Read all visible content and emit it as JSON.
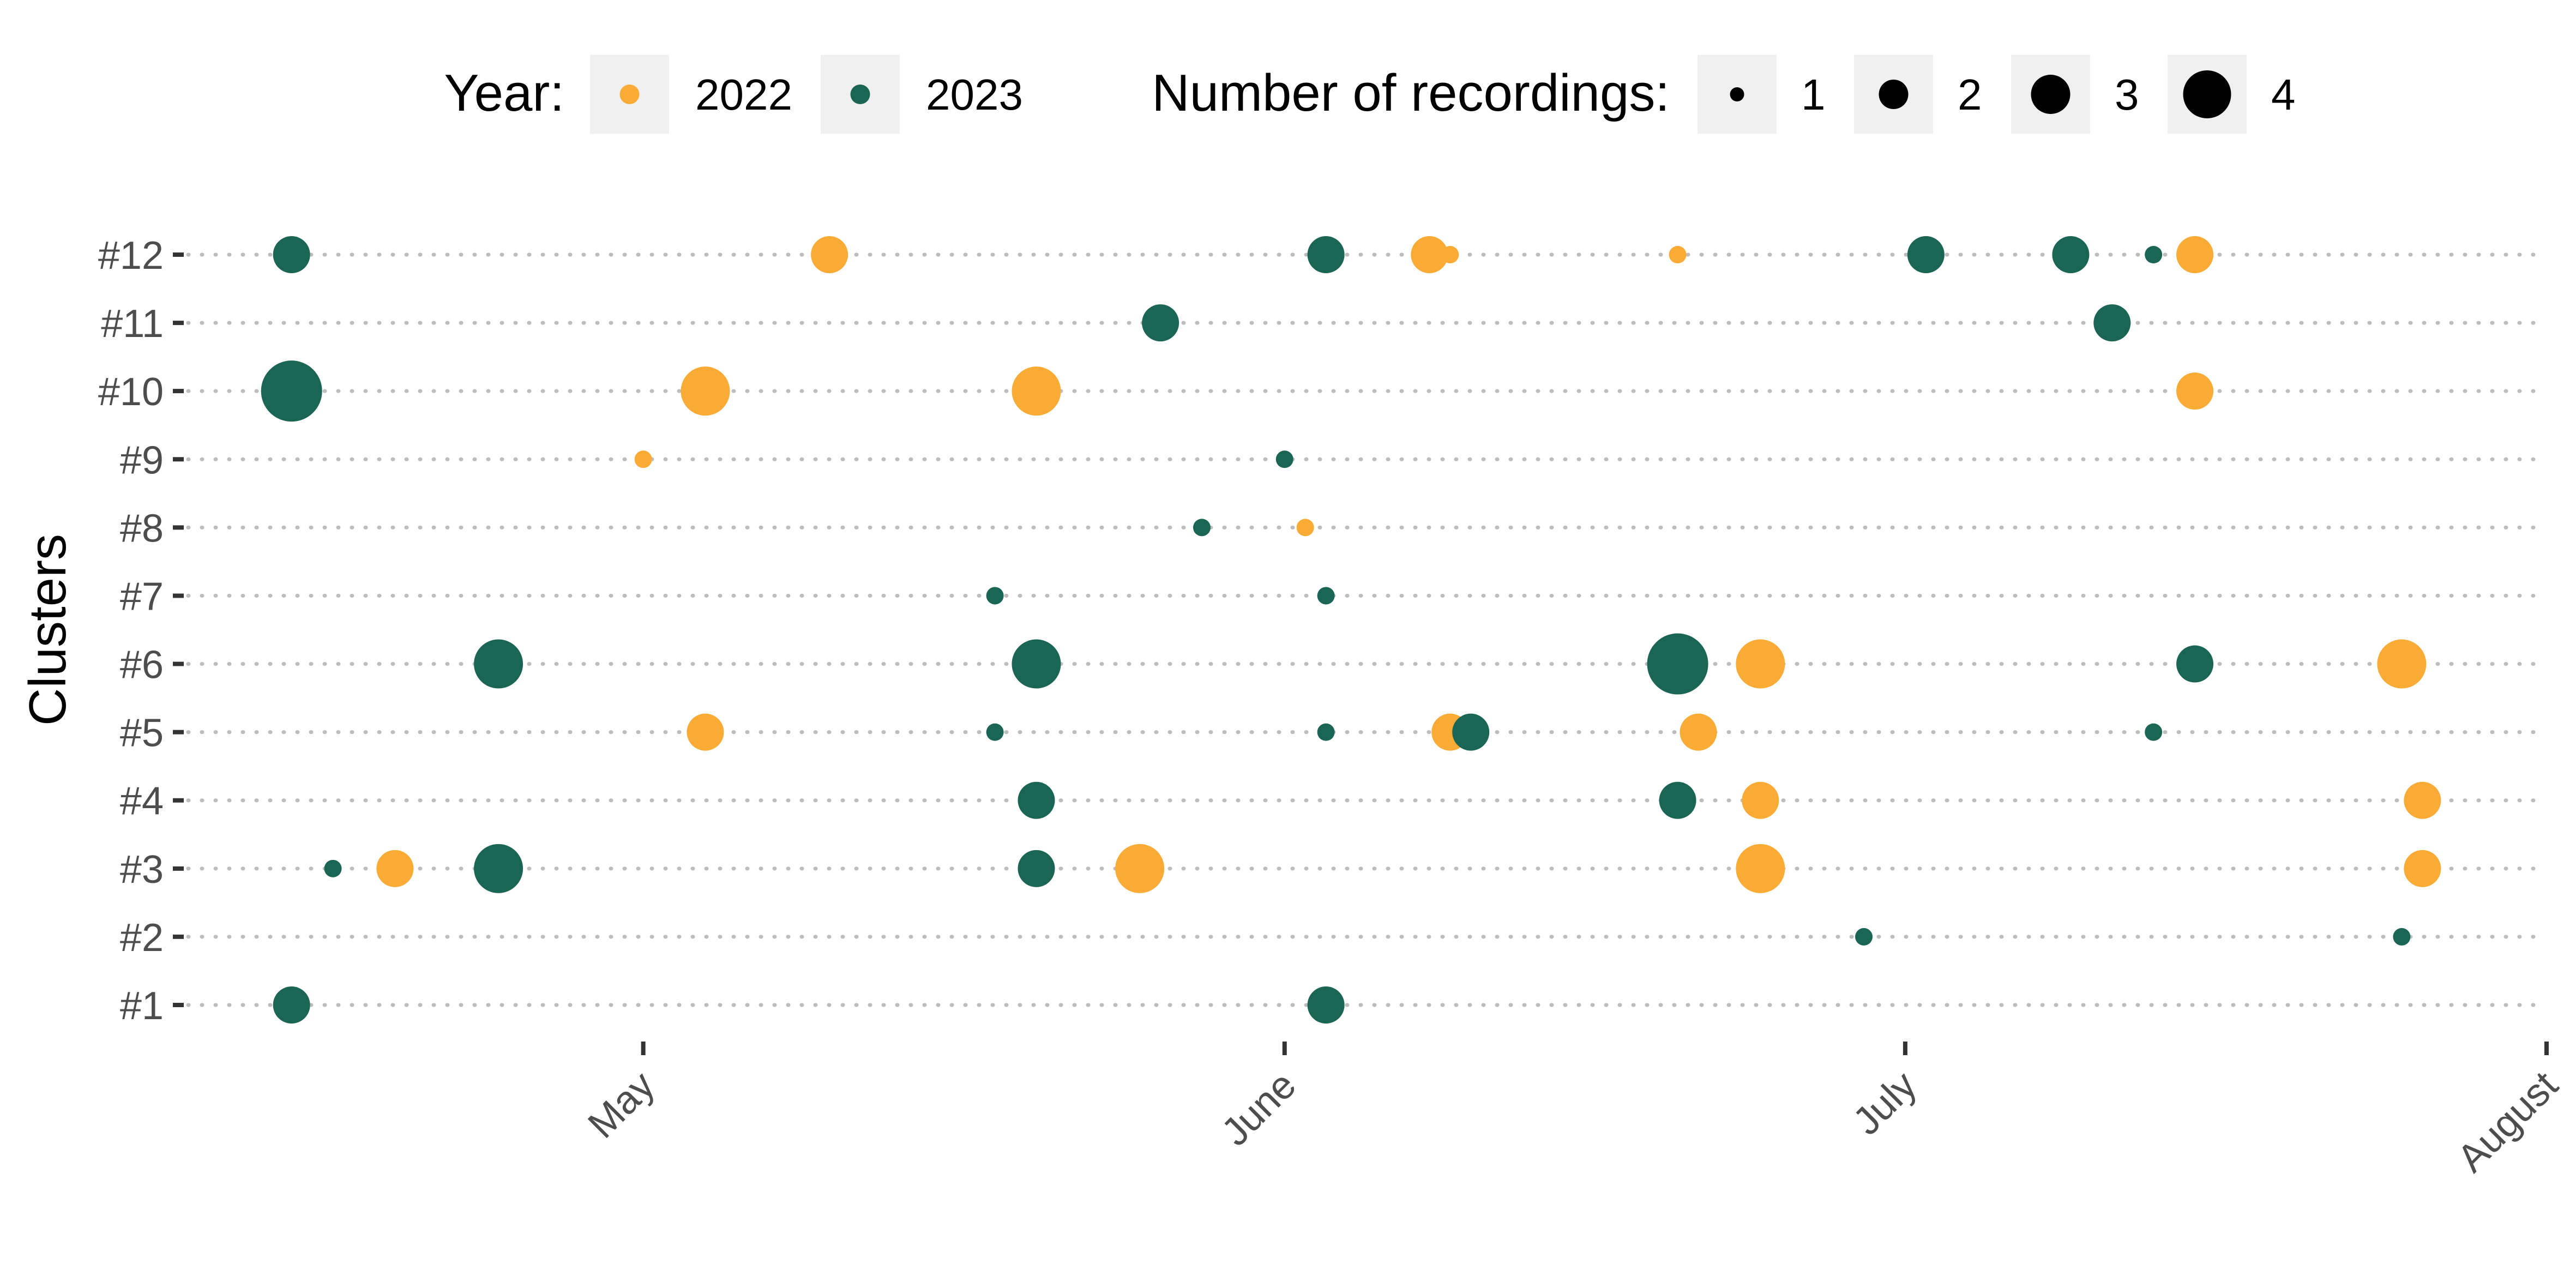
{
  "chart_data": {
    "type": "scatter",
    "title": "",
    "xlabel": "",
    "ylabel": "Clusters",
    "x_type": "date",
    "xlim": [
      "2022-04-09",
      "2022-08-01"
    ],
    "x_ticks": [
      {
        "label": "May",
        "date": "2022-05-01"
      },
      {
        "label": "June",
        "date": "2022-06-01"
      },
      {
        "label": "July",
        "date": "2022-07-01"
      },
      {
        "label": "August",
        "date": "2022-08-01"
      }
    ],
    "categories": [
      "#1",
      "#2",
      "#3",
      "#4",
      "#5",
      "#6",
      "#7",
      "#8",
      "#9",
      "#10",
      "#11",
      "#12"
    ],
    "grid": "dotted horizontal per cluster",
    "legend_position": "top",
    "legend": {
      "year_title": "Year:",
      "year_items": [
        {
          "label": "2022",
          "color": "#F9AB35"
        },
        {
          "label": "2023",
          "color": "#1A6554"
        }
      ],
      "size_title": "Number of recordings:",
      "size_items": [
        {
          "label": "1",
          "value": 1
        },
        {
          "label": "2",
          "value": 2
        },
        {
          "label": "3",
          "value": 3
        },
        {
          "label": "4",
          "value": 4
        }
      ]
    },
    "series": [
      {
        "name": "2022",
        "color": "#F9AB35",
        "points": [
          {
            "x": "2022-05-10",
            "y": "#12",
            "n": 2
          },
          {
            "x": "2022-06-08",
            "y": "#12",
            "n": 2
          },
          {
            "x": "2022-06-09",
            "y": "#12",
            "n": 1
          },
          {
            "x": "2022-06-20",
            "y": "#12",
            "n": 1
          },
          {
            "x": "2022-07-15",
            "y": "#12",
            "n": 2
          },
          {
            "x": "2022-05-04",
            "y": "#10",
            "n": 3
          },
          {
            "x": "2022-05-20",
            "y": "#10",
            "n": 3
          },
          {
            "x": "2022-07-15",
            "y": "#10",
            "n": 2
          },
          {
            "x": "2022-05-01",
            "y": "#9",
            "n": 1
          },
          {
            "x": "2022-06-02",
            "y": "#8",
            "n": 1
          },
          {
            "x": "2022-06-24",
            "y": "#6",
            "n": 3
          },
          {
            "x": "2022-07-25",
            "y": "#6",
            "n": 3
          },
          {
            "x": "2022-05-04",
            "y": "#5",
            "n": 2
          },
          {
            "x": "2022-06-09",
            "y": "#5",
            "n": 2
          },
          {
            "x": "2022-06-21",
            "y": "#5",
            "n": 2
          },
          {
            "x": "2022-06-24",
            "y": "#4",
            "n": 2
          },
          {
            "x": "2022-07-26",
            "y": "#4",
            "n": 2
          },
          {
            "x": "2022-04-19",
            "y": "#3",
            "n": 2
          },
          {
            "x": "2022-05-25",
            "y": "#3",
            "n": 3
          },
          {
            "x": "2022-06-24",
            "y": "#3",
            "n": 3
          },
          {
            "x": "2022-07-26",
            "y": "#3",
            "n": 2
          }
        ]
      },
      {
        "name": "2023",
        "color": "#1A6554",
        "points": [
          {
            "x": "2022-04-14",
            "y": "#12",
            "n": 2
          },
          {
            "x": "2022-06-03",
            "y": "#12",
            "n": 2
          },
          {
            "x": "2022-07-02",
            "y": "#12",
            "n": 2
          },
          {
            "x": "2022-07-09",
            "y": "#12",
            "n": 2
          },
          {
            "x": "2022-07-13",
            "y": "#12",
            "n": 1
          },
          {
            "x": "2022-05-26",
            "y": "#11",
            "n": 2
          },
          {
            "x": "2022-07-11",
            "y": "#11",
            "n": 2
          },
          {
            "x": "2022-04-14",
            "y": "#10",
            "n": 4
          },
          {
            "x": "2022-06-01",
            "y": "#9",
            "n": 1
          },
          {
            "x": "2022-05-28",
            "y": "#8",
            "n": 1
          },
          {
            "x": "2022-05-18",
            "y": "#7",
            "n": 1
          },
          {
            "x": "2022-06-03",
            "y": "#7",
            "n": 1
          },
          {
            "x": "2022-04-24",
            "y": "#6",
            "n": 3
          },
          {
            "x": "2022-05-20",
            "y": "#6",
            "n": 3
          },
          {
            "x": "2022-06-20",
            "y": "#6",
            "n": 4
          },
          {
            "x": "2022-07-15",
            "y": "#6",
            "n": 2
          },
          {
            "x": "2022-05-18",
            "y": "#5",
            "n": 1
          },
          {
            "x": "2022-06-03",
            "y": "#5",
            "n": 1
          },
          {
            "x": "2022-06-10",
            "y": "#5",
            "n": 2
          },
          {
            "x": "2022-07-13",
            "y": "#5",
            "n": 1
          },
          {
            "x": "2022-05-20",
            "y": "#4",
            "n": 2
          },
          {
            "x": "2022-06-20",
            "y": "#4",
            "n": 2
          },
          {
            "x": "2022-04-16",
            "y": "#3",
            "n": 1
          },
          {
            "x": "2022-04-24",
            "y": "#3",
            "n": 3
          },
          {
            "x": "2022-05-20",
            "y": "#3",
            "n": 2
          },
          {
            "x": "2022-06-29",
            "y": "#2",
            "n": 1
          },
          {
            "x": "2022-07-25",
            "y": "#2",
            "n": 1
          },
          {
            "x": "2022-04-14",
            "y": "#1",
            "n": 2
          },
          {
            "x": "2022-06-03",
            "y": "#1",
            "n": 2
          }
        ]
      }
    ]
  }
}
